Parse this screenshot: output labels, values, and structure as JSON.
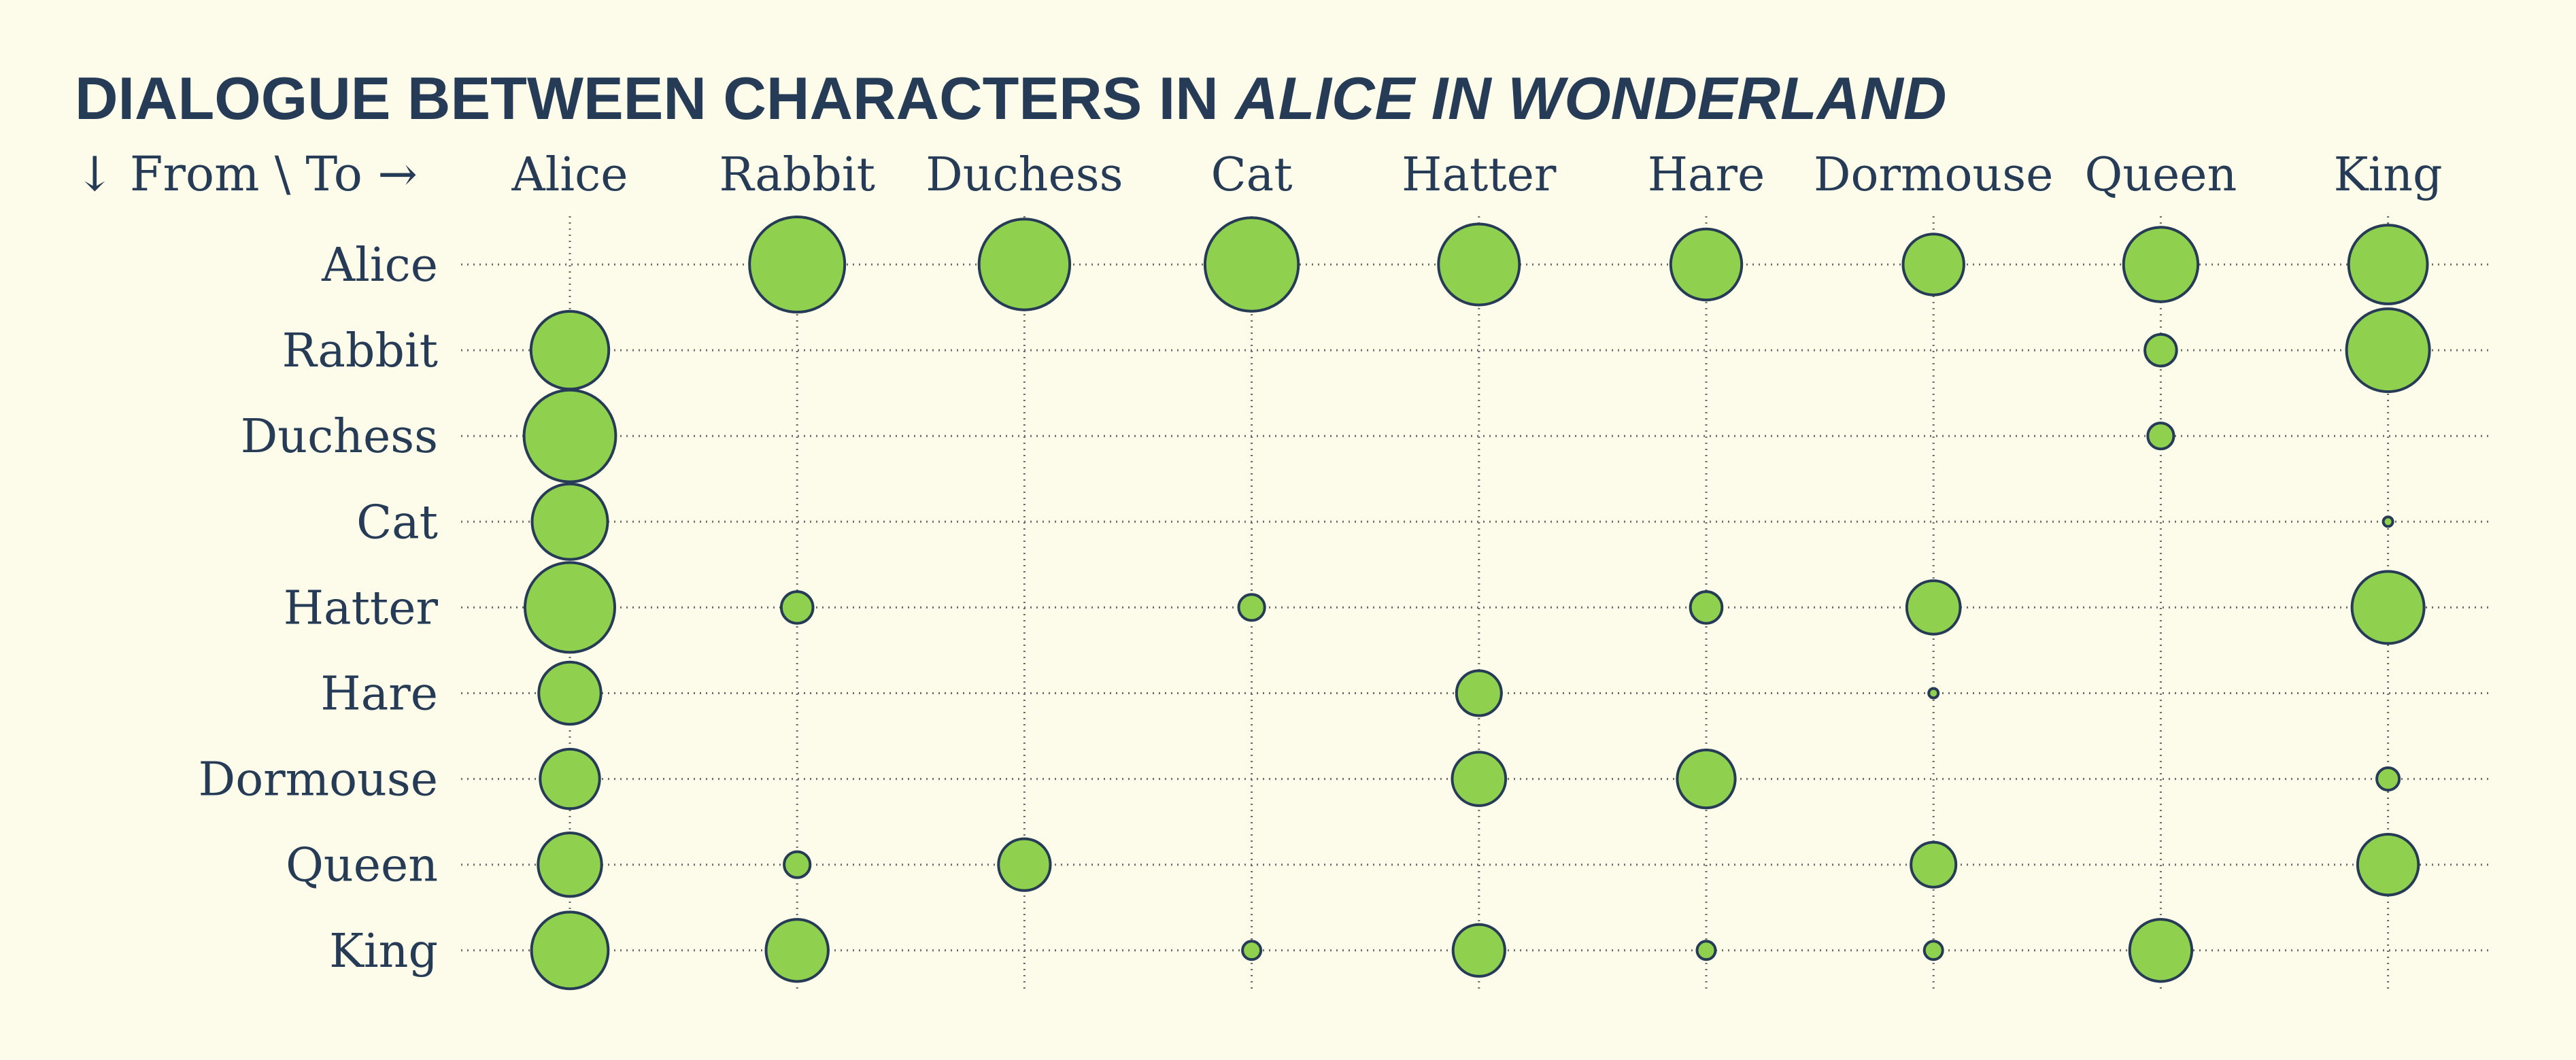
{
  "chart_data": {
    "type": "scatter",
    "title_prefix": "DIALOGUE BETWEEN CHARACTERS IN ",
    "title_emph": "ALICE IN WONDERLAND",
    "corner_label": "↓ From \\ To →",
    "row_axis": "From",
    "column_axis": "To",
    "characters": [
      "Alice",
      "Rabbit",
      "Duchess",
      "Cat",
      "Hatter",
      "Hare",
      "Dormouse",
      "Queen",
      "King"
    ],
    "matrix": [
      [
        0,
        54,
        49,
        52,
        39,
        30,
        22,
        33,
        37
      ],
      [
        36,
        0,
        0,
        0,
        0,
        0,
        0,
        6,
        41
      ],
      [
        50,
        0,
        0,
        0,
        0,
        0,
        0,
        4,
        0
      ],
      [
        34,
        0,
        0,
        0,
        0,
        0,
        0,
        0,
        0.5
      ],
      [
        48,
        6,
        0,
        4,
        0,
        6,
        17,
        0,
        31
      ],
      [
        23,
        0,
        0,
        0,
        12,
        0,
        0.5,
        0,
        0
      ],
      [
        21,
        0,
        0,
        0,
        17,
        20,
        0,
        0,
        3
      ],
      [
        24,
        4,
        16,
        0,
        0,
        0,
        12,
        0,
        22
      ],
      [
        35,
        23,
        0,
        2,
        16,
        2,
        2,
        23,
        0
      ]
    ],
    "grid": true,
    "colors": {
      "fill": "#8fd14f",
      "stroke": "#263b55",
      "text": "#263b55",
      "grid": "#6b6b6b",
      "background": "#fdfbe9"
    }
  }
}
